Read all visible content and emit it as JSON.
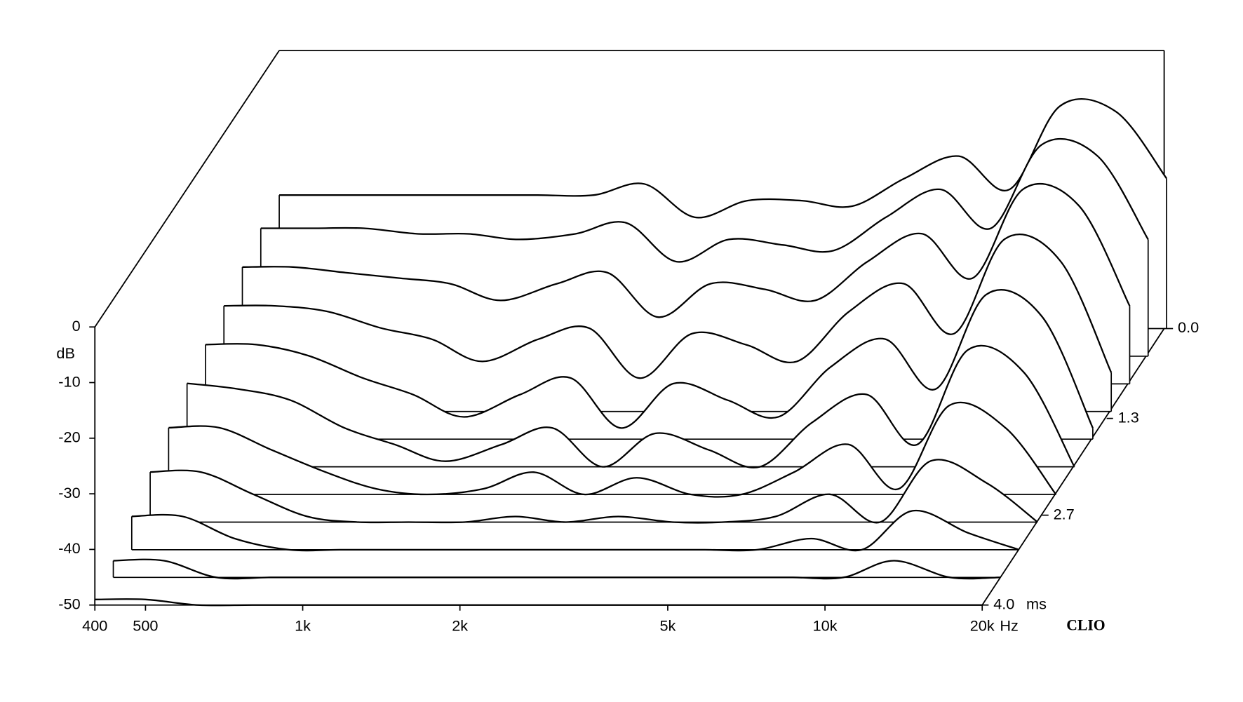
{
  "chart_data": {
    "type": "waterfall",
    "frequencies": [
      400,
      500,
      630,
      800,
      1000,
      1250,
      1600,
      2000,
      2500,
      3150,
      4000,
      5000,
      6300,
      8000,
      10000,
      12500,
      16000,
      20000
    ],
    "xlim": [
      400,
      20000
    ],
    "xticks": [
      400,
      500,
      {
        "value": 1000,
        "label": "1k"
      },
      {
        "value": 2000,
        "label": "2k"
      },
      {
        "value": 5000,
        "label": "5k"
      },
      {
        "value": 10000,
        "label": "10k"
      },
      {
        "value": 20000,
        "label": "20k"
      }
    ],
    "x_unit": "Hz",
    "ylim": [
      -50,
      0
    ],
    "yticks": [
      0,
      -10,
      -20,
      -30,
      -40,
      -50
    ],
    "y_label": "dB",
    "zlim": [
      0,
      4.0
    ],
    "zticks": [
      {
        "value": 0,
        "label": "0.0"
      },
      1.3,
      2.7,
      {
        "value": 4.0,
        "label": "4.0"
      }
    ],
    "z_unit": "ms",
    "brand": "CLIO",
    "color": "#000000",
    "series": [
      {
        "time": 0.0,
        "values": [
          -26,
          -26,
          -26,
          -26,
          -26,
          -26,
          -26,
          -24,
          -30,
          -27,
          -27,
          -28,
          -23,
          -19,
          -25,
          -10,
          -11,
          -23
        ]
      },
      {
        "time": 0.4,
        "values": [
          -27,
          -27,
          -27,
          -28,
          -28,
          -29,
          -28,
          -26,
          -33,
          -29,
          -30,
          -31,
          -25,
          -20,
          -27,
          -12,
          -14,
          -29
        ]
      },
      {
        "time": 0.8,
        "values": [
          -29,
          -29,
          -30,
          -31,
          -32,
          -35,
          -32,
          -30,
          -38,
          -32,
          -33,
          -35,
          -28,
          -23,
          -31,
          -15,
          -18,
          -36
        ]
      },
      {
        "time": 1.2,
        "values": [
          -31,
          -31,
          -32,
          -35,
          -37,
          -41,
          -37,
          -35,
          -44,
          -36,
          -38,
          -41,
          -32,
          -27,
          -36,
          -19,
          -23,
          -43
        ]
      },
      {
        "time": 1.6,
        "values": [
          -33,
          -33,
          -35,
          -39,
          -42,
          -46,
          -42,
          -39,
          -48,
          -40,
          -43,
          -46,
          -37,
          -32,
          -41,
          -24,
          -28,
          -48
        ]
      },
      {
        "time": 2.0,
        "values": [
          -35,
          -36,
          -38,
          -43,
          -46,
          -49,
          -46,
          -43,
          -50,
          -44,
          -47,
          -50,
          -42,
          -37,
          -46,
          -29,
          -33,
          -50
        ]
      },
      {
        "time": 2.4,
        "values": [
          -38,
          -38,
          -42,
          -46,
          -49,
          -50,
          -49,
          -46,
          -50,
          -47,
          -50,
          -50,
          -46,
          -41,
          -49,
          -34,
          -38,
          -50
        ]
      },
      {
        "time": 2.8,
        "values": [
          -41,
          -41,
          -45,
          -49,
          -50,
          -50,
          -50,
          -49,
          -50,
          -49,
          -50,
          -50,
          -49,
          -45,
          -50,
          -39,
          -43,
          -50
        ]
      },
      {
        "time": 3.2,
        "values": [
          -44,
          -44,
          -48,
          -50,
          -50,
          -50,
          -50,
          -50,
          -50,
          -50,
          -50,
          -50,
          -50,
          -48,
          -50,
          -43,
          -47,
          -50
        ]
      },
      {
        "time": 3.6,
        "values": [
          -47,
          -47,
          -50,
          -50,
          -50,
          -50,
          -50,
          -50,
          -50,
          -50,
          -50,
          -50,
          -50,
          -50,
          -50,
          -47,
          -50,
          -50
        ]
      },
      {
        "time": 4.0,
        "values": [
          -49,
          -49,
          -50,
          -50,
          -50,
          -50,
          -50,
          -50,
          -50,
          -50,
          -50,
          -50,
          -50,
          -50,
          -50,
          -50,
          -50,
          -50
        ]
      }
    ]
  }
}
